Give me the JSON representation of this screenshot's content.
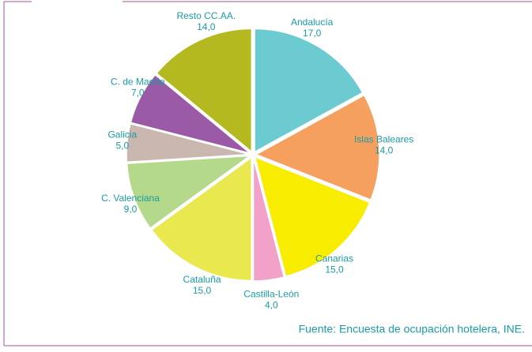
{
  "chart_data": {
    "type": "pie",
    "categories": [
      "Andalucía",
      "Islas Baleares",
      "Canarias",
      "Castilla-León",
      "Cataluña",
      "C. Valenciana",
      "Galicia",
      "C. de Madrid",
      "Resto CC.AA."
    ],
    "values": [
      17,
      14,
      15,
      4,
      15,
      9,
      5,
      7,
      14
    ],
    "value_labels": [
      "17,0",
      "14,0",
      "15,0",
      "4,0",
      "15,0",
      "9,0",
      "5,0",
      "7,0",
      "14,0"
    ],
    "colors": [
      "#6ccbd0",
      "#f5a05f",
      "#f8ec00",
      "#f2a1c8",
      "#e9e84f",
      "#b5d98a",
      "#c9b7b0",
      "#9a5aa6",
      "#b3b91f"
    ],
    "source": "Fuente: Encuesta de ocupación hotelera, INE."
  }
}
